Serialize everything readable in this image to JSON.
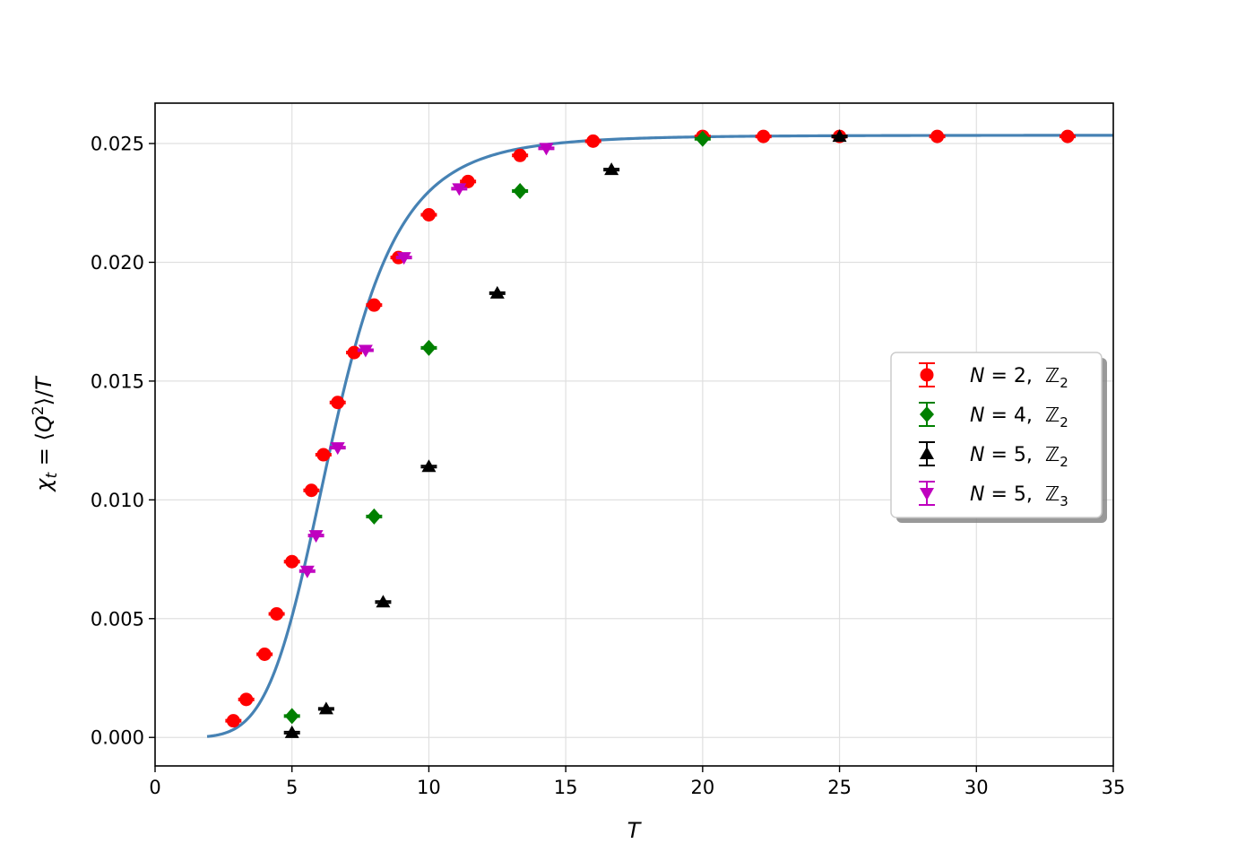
{
  "chart_data": {
    "type": "scatter",
    "title": "",
    "xlabel": "T",
    "ylabel": "χ_t = ⟨Q²⟩/T",
    "xlim": [
      0,
      35
    ],
    "ylim": [
      -0.0012,
      0.0267
    ],
    "grid": true,
    "legend_position": "right",
    "x_ticks": [
      0,
      5,
      10,
      15,
      20,
      25,
      30,
      35
    ],
    "x_tick_labels": [
      "0",
      "5",
      "10",
      "15",
      "20",
      "25",
      "30",
      "35"
    ],
    "y_ticks": [
      0.0,
      0.005,
      0.01,
      0.015,
      0.02,
      0.025
    ],
    "y_tick_labels": [
      "0.000",
      "0.005",
      "0.010",
      "0.015",
      "0.020",
      "0.025"
    ],
    "series": [
      {
        "name": "N = 2,  ℤ₂",
        "legend_n": "N",
        "legend_eq": " = 2,  ",
        "legend_z": "ℤ",
        "legend_sub": "2",
        "marker": "circle",
        "color": "#ff0000",
        "points": [
          {
            "x": 2.86,
            "y": 0.0007
          },
          {
            "x": 3.33,
            "y": 0.0016
          },
          {
            "x": 4.0,
            "y": 0.0035
          },
          {
            "x": 4.44,
            "y": 0.0052
          },
          {
            "x": 5.0,
            "y": 0.0074
          },
          {
            "x": 5.71,
            "y": 0.0104
          },
          {
            "x": 6.15,
            "y": 0.0119
          },
          {
            "x": 6.67,
            "y": 0.0141
          },
          {
            "x": 7.27,
            "y": 0.0162
          },
          {
            "x": 8.0,
            "y": 0.0182
          },
          {
            "x": 8.89,
            "y": 0.0202
          },
          {
            "x": 10.0,
            "y": 0.022
          },
          {
            "x": 11.43,
            "y": 0.0234
          },
          {
            "x": 13.33,
            "y": 0.0245
          },
          {
            "x": 16.0,
            "y": 0.0251
          },
          {
            "x": 20.0,
            "y": 0.0253
          },
          {
            "x": 22.22,
            "y": 0.0253
          },
          {
            "x": 25.0,
            "y": 0.0253
          },
          {
            "x": 28.57,
            "y": 0.0253
          },
          {
            "x": 33.33,
            "y": 0.0253
          }
        ]
      },
      {
        "name": "N = 4,  ℤ₂",
        "legend_n": "N",
        "legend_eq": " = 4,  ",
        "legend_z": "ℤ",
        "legend_sub": "2",
        "marker": "diamond",
        "color": "#008000",
        "points": [
          {
            "x": 5.0,
            "y": 0.0009
          },
          {
            "x": 8.0,
            "y": 0.0093
          },
          {
            "x": 10.0,
            "y": 0.0164
          },
          {
            "x": 13.33,
            "y": 0.023
          },
          {
            "x": 20.0,
            "y": 0.0252
          }
        ]
      },
      {
        "name": "N = 5,  ℤ₂",
        "legend_n": "N",
        "legend_eq": " = 5,  ",
        "legend_z": "ℤ",
        "legend_sub": "2",
        "marker": "triangle-up",
        "color": "#000000",
        "points": [
          {
            "x": 5.0,
            "y": 0.0002
          },
          {
            "x": 6.25,
            "y": 0.0012
          },
          {
            "x": 8.33,
            "y": 0.0057
          },
          {
            "x": 10.0,
            "y": 0.0114
          },
          {
            "x": 12.5,
            "y": 0.0187
          },
          {
            "x": 16.67,
            "y": 0.0239
          },
          {
            "x": 25.0,
            "y": 0.0253
          }
        ]
      },
      {
        "name": "N = 5,  ℤ₃",
        "legend_n": "N",
        "legend_eq": " = 5,  ",
        "legend_z": "ℤ",
        "legend_sub": "3",
        "marker": "triangle-down",
        "color": "#bf00bf",
        "points": [
          {
            "x": 5.56,
            "y": 0.007
          },
          {
            "x": 5.88,
            "y": 0.0085
          },
          {
            "x": 6.67,
            "y": 0.0122
          },
          {
            "x": 7.69,
            "y": 0.0163
          },
          {
            "x": 9.09,
            "y": 0.0202
          },
          {
            "x": 11.11,
            "y": 0.0231
          },
          {
            "x": 14.29,
            "y": 0.0248
          }
        ]
      }
    ],
    "fit_curve": {
      "color": "#4682b4",
      "x_start": 1.9,
      "x_end": 35,
      "plateau": 0.02535,
      "midpoint": 6.5,
      "width": 3.7,
      "exponent": 3.0
    }
  }
}
